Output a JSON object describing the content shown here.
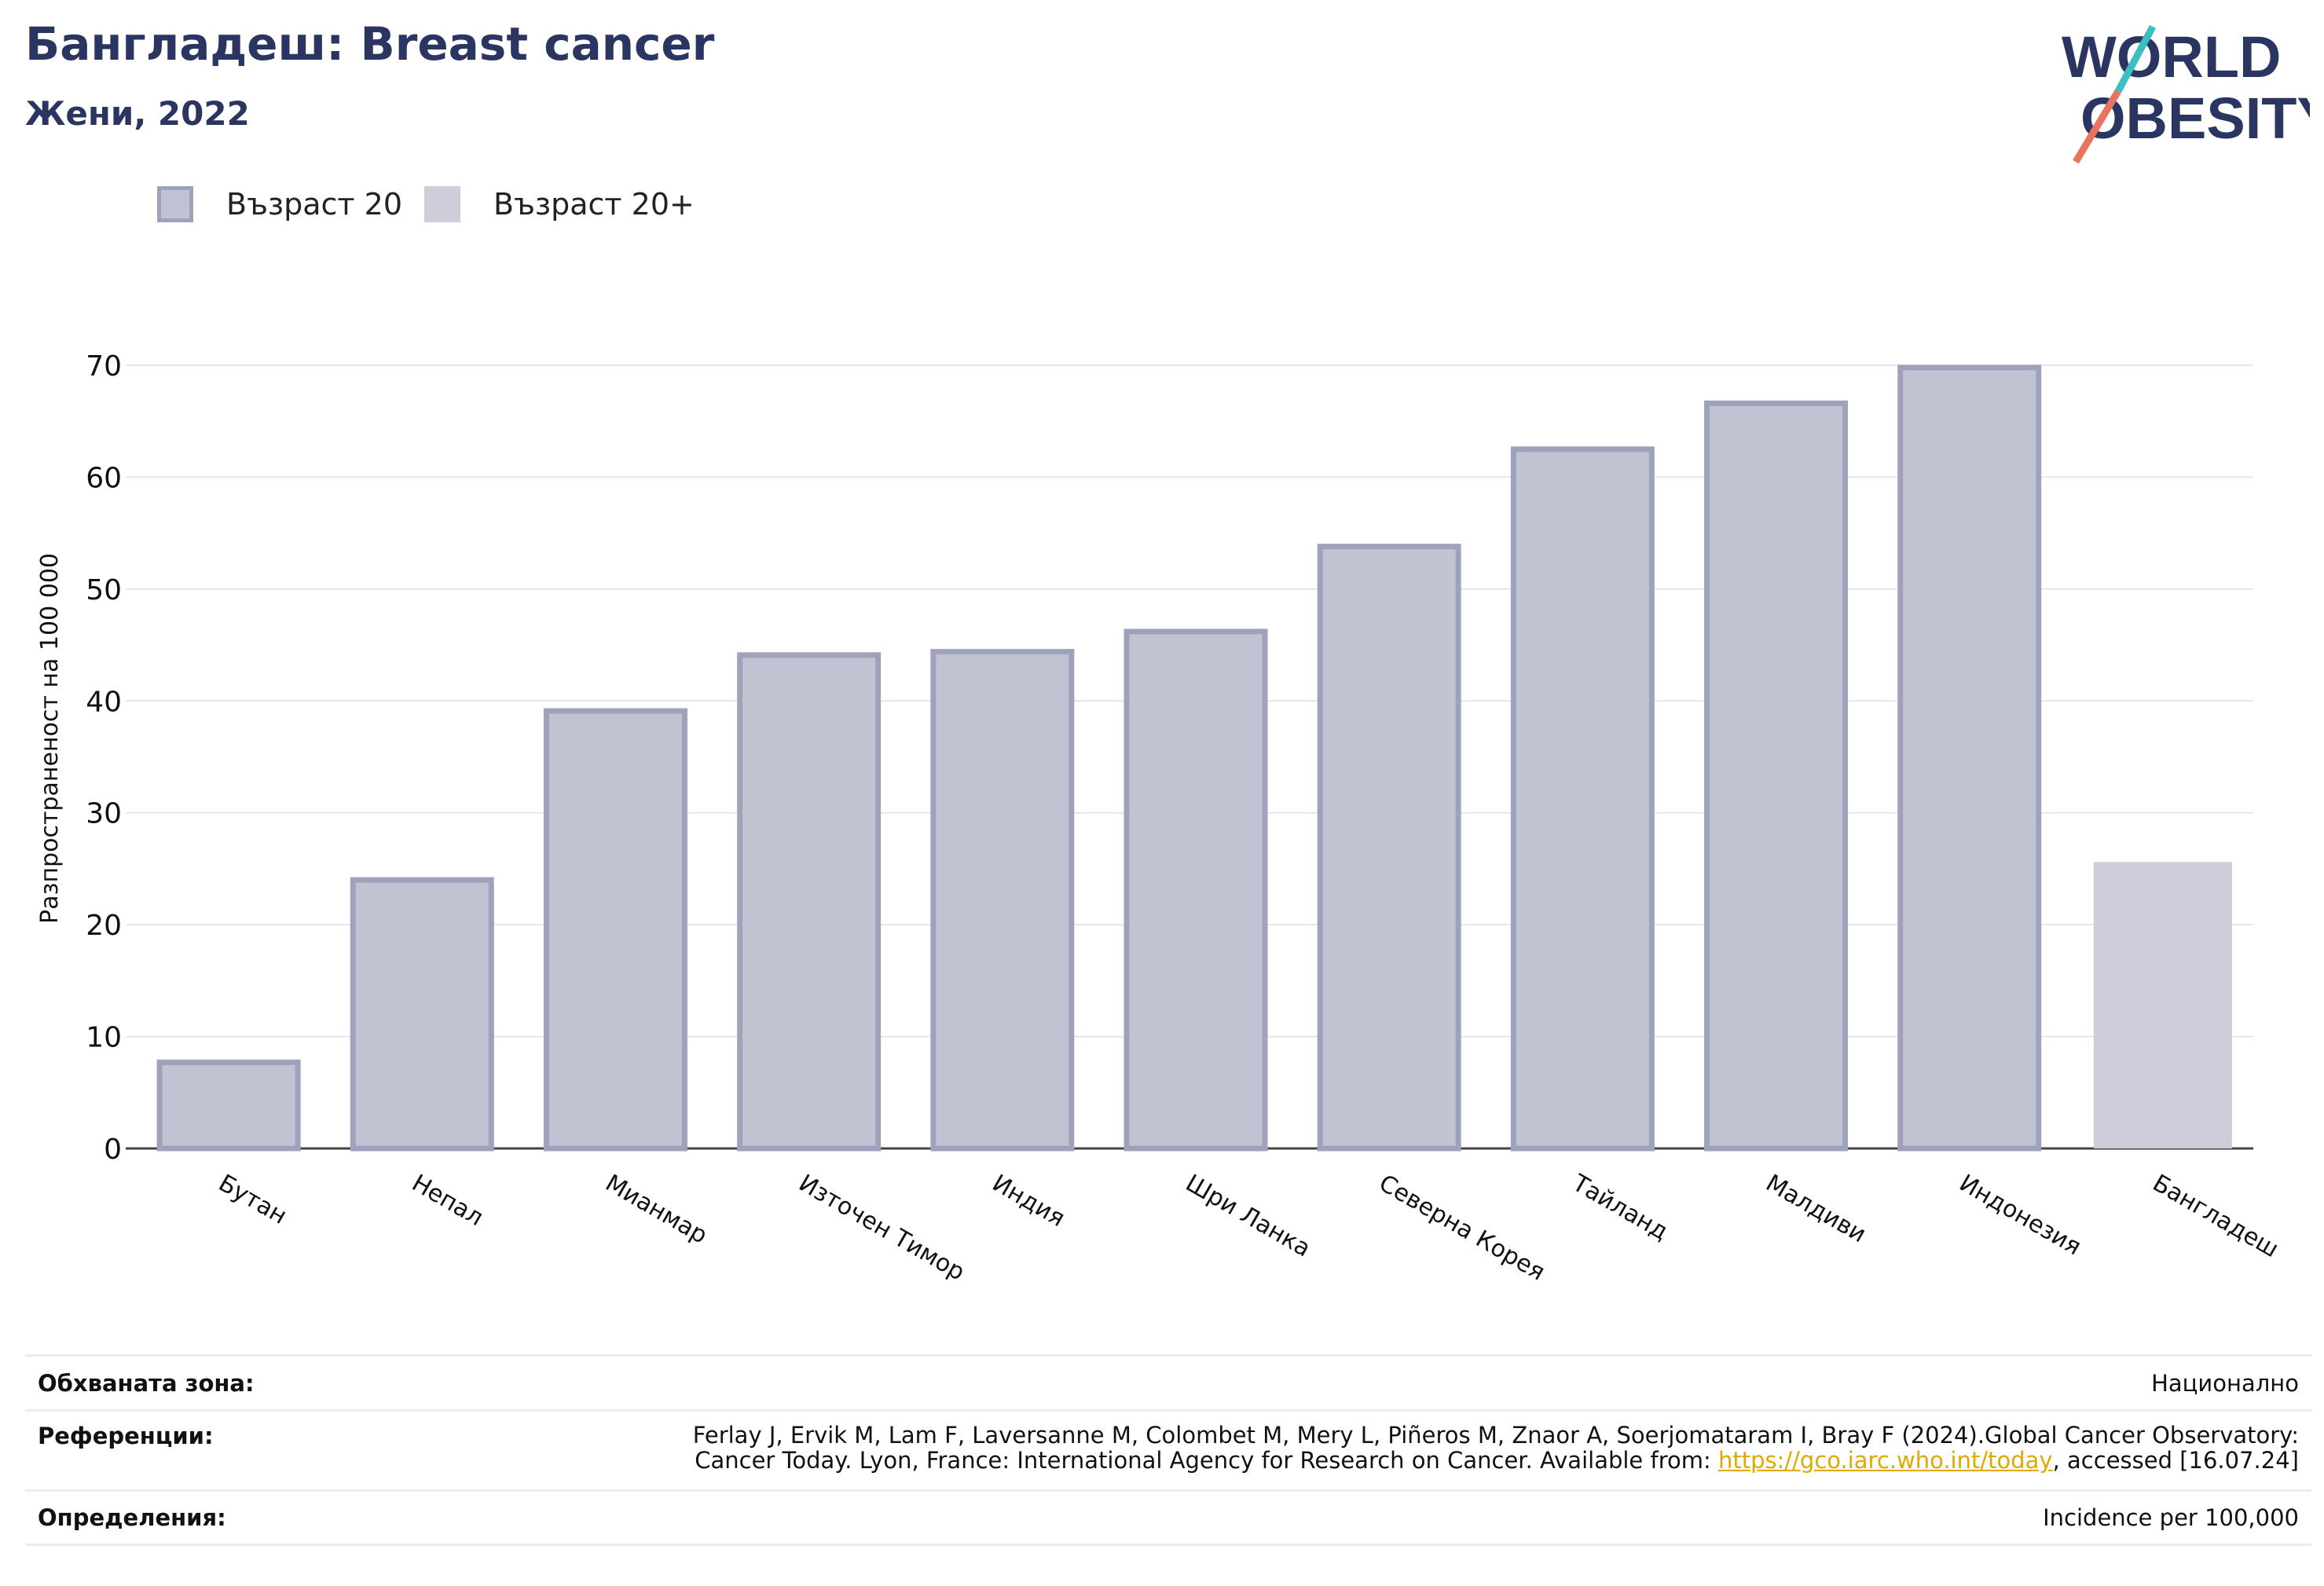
{
  "header": {
    "title": "Бангладеш: Breast cancer",
    "subtitle": "Жени, 2022"
  },
  "logo": {
    "line1": "WORLD",
    "line2": "OBESITY",
    "accent_teal": "#3bbfbf",
    "accent_coral": "#e8735f",
    "brand": "#2b3562"
  },
  "legend": [
    {
      "label": "Възраст 20",
      "fill": "#c0c3d1",
      "stroke": "#9ea2bb"
    },
    {
      "label": "Възраст 20+",
      "fill": "#cdced9",
      "stroke": "#cdced9"
    }
  ],
  "chart_data": {
    "type": "bar",
    "ylabel": "Разпространеност  на 100 000",
    "ylim": [
      0,
      70
    ],
    "yticks": [
      0,
      10,
      20,
      30,
      40,
      50,
      60,
      70
    ],
    "grid": true,
    "categories": [
      "Бутан",
      "Непал",
      "Мианмар",
      "Източен Тимор",
      "Индия",
      "Шри Ланка",
      "Северна Корея",
      "Тайланд",
      "Малдиви",
      "Индонезия",
      "Бангладеш"
    ],
    "series": [
      {
        "name": "Възраст 20",
        "values": [
          7.7,
          24.0,
          39.1,
          44.1,
          44.4,
          46.2,
          53.8,
          62.5,
          66.6,
          69.8,
          null
        ]
      },
      {
        "name": "Възраст 20+",
        "values": [
          null,
          null,
          null,
          null,
          null,
          null,
          null,
          null,
          null,
          null,
          25.6
        ]
      }
    ]
  },
  "footer": {
    "rows": [
      {
        "key": "Обхваната зона:",
        "value": "Национално"
      },
      {
        "key": "Референции:",
        "value_line1": "Ferlay J, Ervik M, Lam F, Laversanne M, Colombet M, Mery L, Piñeros M, Znaor A, Soerjomataram I, Bray F (2024).Global Cancer Observatory:",
        "value_line2_pre": "Cancer Today. Lyon, France: International Agency for Research on Cancer. Available from: ",
        "link": "https://gco.iarc.who.int/today",
        "value_line2_post": ", accessed [16.07.24]"
      },
      {
        "key": "Определения:",
        "value": "Incidence per 100,000"
      }
    ]
  }
}
